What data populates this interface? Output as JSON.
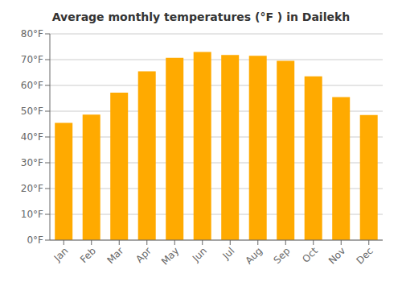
{
  "chart_data": {
    "type": "bar",
    "title": "Average monthly temperatures (°F ) in Dailekh",
    "categories": [
      "Jan",
      "Feb",
      "Mar",
      "Apr",
      "May",
      "Jun",
      "Jul",
      "Aug",
      "Sep",
      "Oct",
      "Nov",
      "Dec"
    ],
    "values": [
      45.5,
      48.7,
      57.2,
      65.5,
      70.7,
      73.0,
      71.8,
      71.5,
      69.5,
      63.5,
      55.5,
      48.5
    ],
    "color": "#FFAA00",
    "ylim": [
      0,
      80
    ],
    "yticks": [
      {
        "value": 0,
        "label": "0°F"
      },
      {
        "value": 10,
        "label": "10°F"
      },
      {
        "value": 20,
        "label": "20°F"
      },
      {
        "value": 30,
        "label": "30°F"
      },
      {
        "value": 40,
        "label": "40°F"
      },
      {
        "value": 50,
        "label": "50°F"
      },
      {
        "value": 60,
        "label": "60°F"
      },
      {
        "value": 70,
        "label": "70°F"
      },
      {
        "value": 80,
        "label": "80°F"
      }
    ],
    "grid": true
  }
}
